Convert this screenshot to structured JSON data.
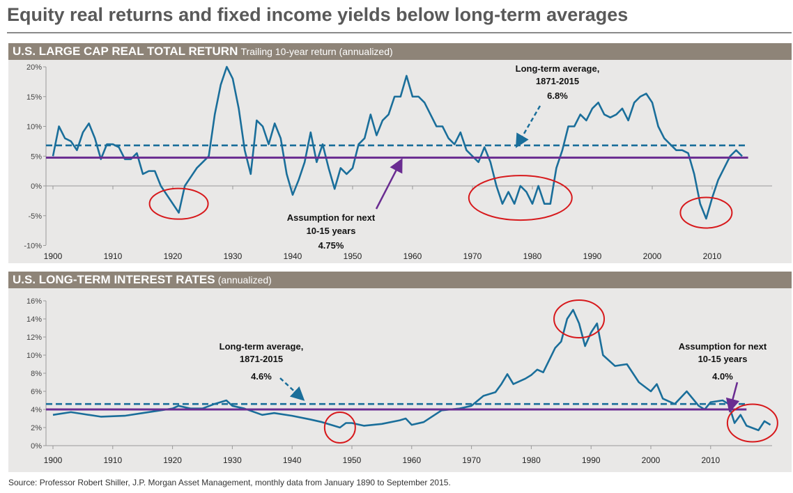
{
  "title": "Equity real returns and fixed income yields below long-term averages",
  "source": "Source: Professor Robert Shiller, J.P. Morgan Asset Management, monthly data from January 1890 to September 2015.",
  "colors": {
    "series": "#1a6e9a",
    "average": "#1a6e9a",
    "assumption": "#6a2c91",
    "circle": "#d7191c",
    "header": "#8e8478",
    "panel": "#e9e8e7"
  },
  "chart_data": [
    {
      "type": "line",
      "title": "U.S. LARGE CAP REAL TOTAL RETURN",
      "subtitle": "Trailing 10-year return (annualized)",
      "xlabel": "",
      "ylabel": "",
      "xlim": [
        1900,
        2020
      ],
      "ylim": [
        -10,
        20
      ],
      "x_ticks": [
        "1900",
        "1910",
        "1920",
        "1930",
        "1940",
        "1950",
        "1960",
        "1970",
        "1980",
        "1990",
        "2000",
        "2010"
      ],
      "y_ticks": [
        "-10%",
        "-5%",
        "0%",
        "5%",
        "10%",
        "15%",
        "20%"
      ],
      "y_tick_values": [
        -10,
        -5,
        0,
        5,
        10,
        15,
        20
      ],
      "series": [
        {
          "name": "Trailing 10-year real return (%)",
          "x": [
            1900,
            1901,
            1902,
            1903,
            1904,
            1905,
            1906,
            1907,
            1908,
            1909,
            1910,
            1911,
            1912,
            1913,
            1914,
            1915,
            1916,
            1917,
            1918,
            1919,
            1920,
            1921,
            1922,
            1923,
            1924,
            1925,
            1926,
            1927,
            1928,
            1929,
            1930,
            1931,
            1932,
            1933,
            1934,
            1935,
            1936,
            1937,
            1938,
            1939,
            1940,
            1941,
            1942,
            1943,
            1944,
            1945,
            1946,
            1947,
            1948,
            1949,
            1950,
            1951,
            1952,
            1953,
            1954,
            1955,
            1956,
            1957,
            1958,
            1959,
            1960,
            1961,
            1962,
            1963,
            1964,
            1965,
            1966,
            1967,
            1968,
            1969,
            1970,
            1971,
            1972,
            1973,
            1974,
            1975,
            1976,
            1977,
            1978,
            1979,
            1980,
            1981,
            1982,
            1983,
            1984,
            1985,
            1986,
            1987,
            1988,
            1989,
            1990,
            1991,
            1992,
            1993,
            1994,
            1995,
            1996,
            1997,
            1998,
            1999,
            2000,
            2001,
            2002,
            2003,
            2004,
            2005,
            2006,
            2007,
            2008,
            2009,
            2010,
            2011,
            2012,
            2013,
            2014,
            2015
          ],
          "values": [
            5,
            10,
            8,
            7.5,
            6,
            9,
            10.5,
            8,
            4.5,
            7,
            7,
            6.5,
            4.5,
            4.5,
            5.5,
            2,
            2.5,
            2.5,
            0,
            -1.5,
            -3,
            -4.5,
            0,
            1.5,
            3,
            4,
            5,
            12,
            17,
            20,
            18,
            13,
            6,
            2,
            11,
            10,
            7,
            10.5,
            8,
            2,
            -1.5,
            1,
            4,
            9,
            4,
            7,
            3,
            -0.5,
            3,
            2,
            3,
            7,
            8,
            12,
            8.5,
            11,
            12,
            15,
            15,
            18.5,
            15,
            15,
            14,
            12,
            10,
            10,
            8,
            7,
            9,
            6,
            5,
            4,
            6.5,
            4,
            0,
            -3,
            -1,
            -3,
            0,
            -1,
            -3,
            0,
            -3,
            -3,
            3,
            6,
            10,
            10,
            12,
            11,
            13,
            14,
            12,
            11.5,
            12,
            13,
            11,
            14,
            15,
            15.5,
            14,
            10,
            8,
            7,
            6,
            6,
            5.5,
            2,
            -3,
            -5.5,
            -2,
            1,
            3,
            5,
            6,
            5
          ]
        }
      ],
      "reference_lines": [
        {
          "name": "Long-term average, 1871-2015",
          "value": 6.8,
          "style": "dashed",
          "label": [
            "Long-term average,",
            "1871-2015",
            "6.8%"
          ]
        },
        {
          "name": "Assumption for next 10-15 years",
          "value": 4.75,
          "style": "solid",
          "label": [
            "Assumption for next",
            "10-15 years",
            "4.75%"
          ]
        }
      ],
      "highlights": [
        {
          "x": 1921,
          "y": -3
        },
        {
          "x": 1978,
          "y": -2
        },
        {
          "x": 2009,
          "y": -4.5
        }
      ]
    },
    {
      "type": "line",
      "title": "U.S. LONG-TERM INTEREST RATES",
      "subtitle": "(annualized)",
      "xlabel": "",
      "ylabel": "",
      "xlim": [
        1900,
        2020
      ],
      "ylim": [
        0,
        16
      ],
      "x_ticks": [
        "1900",
        "1910",
        "1920",
        "1930",
        "1940",
        "1950",
        "1960",
        "1970",
        "1980",
        "1990",
        "2000",
        "2010"
      ],
      "y_ticks": [
        "0%",
        "2%",
        "4%",
        "6%",
        "8%",
        "10%",
        "12%",
        "14%",
        "16%"
      ],
      "y_tick_values": [
        0,
        2,
        4,
        6,
        8,
        10,
        12,
        14,
        16
      ],
      "series": [
        {
          "name": "Long-term interest rate (%)",
          "x": [
            1900,
            1903,
            1905,
            1908,
            1912,
            1915,
            1918,
            1920,
            1921,
            1923,
            1925,
            1927,
            1929,
            1930,
            1932,
            1935,
            1937,
            1940,
            1943,
            1945,
            1947,
            1948,
            1949,
            1950,
            1952,
            1955,
            1958,
            1959,
            1960,
            1962,
            1965,
            1968,
            1970,
            1972,
            1974,
            1975,
            1976,
            1977,
            1979,
            1980,
            1981,
            1982,
            1984,
            1985,
            1986,
            1987,
            1988,
            1989,
            1990,
            1991,
            1992,
            1994,
            1996,
            1998,
            2000,
            2001,
            2002,
            2004,
            2006,
            2008,
            2009,
            2010,
            2012,
            2013,
            2014,
            2015,
            2016,
            2018,
            2019,
            2020
          ],
          "values": [
            3.4,
            3.7,
            3.5,
            3.2,
            3.3,
            3.6,
            3.9,
            4.1,
            4.4,
            4.1,
            4.1,
            4.6,
            5.0,
            4.4,
            4.1,
            3.4,
            3.6,
            3.3,
            2.9,
            2.6,
            2.2,
            2.0,
            2.5,
            2.5,
            2.2,
            2.4,
            2.8,
            3.0,
            2.3,
            2.6,
            3.9,
            4.1,
            4.4,
            5.5,
            5.9,
            6.8,
            7.9,
            6.8,
            7.4,
            7.8,
            8.4,
            8.1,
            10.8,
            11.5,
            14.0,
            15.0,
            13.5,
            11.0,
            12.5,
            13.5,
            10.0,
            8.8,
            9.0,
            7.0,
            6.0,
            6.8,
            5.2,
            4.6,
            6.0,
            4.4,
            4.0,
            4.8,
            5.0,
            4.6,
            2.5,
            3.4,
            2.2,
            1.7,
            2.7,
            2.3
          ]
        }
      ],
      "reference_lines": [
        {
          "name": "Long-term average, 1871-2015",
          "value": 4.6,
          "style": "dashed",
          "label": [
            "Long-term average,",
            "1871-2015",
            "4.6%"
          ]
        },
        {
          "name": "Assumption for next 10-15 years",
          "value": 4.0,
          "style": "solid",
          "label": [
            "Assumption for next",
            "10-15 years",
            "4.0%"
          ]
        }
      ],
      "highlights": [
        {
          "x": 1948,
          "y": 2
        },
        {
          "x": 1988,
          "y": 14
        },
        {
          "x": 2017,
          "y": 2.5
        }
      ]
    }
  ]
}
